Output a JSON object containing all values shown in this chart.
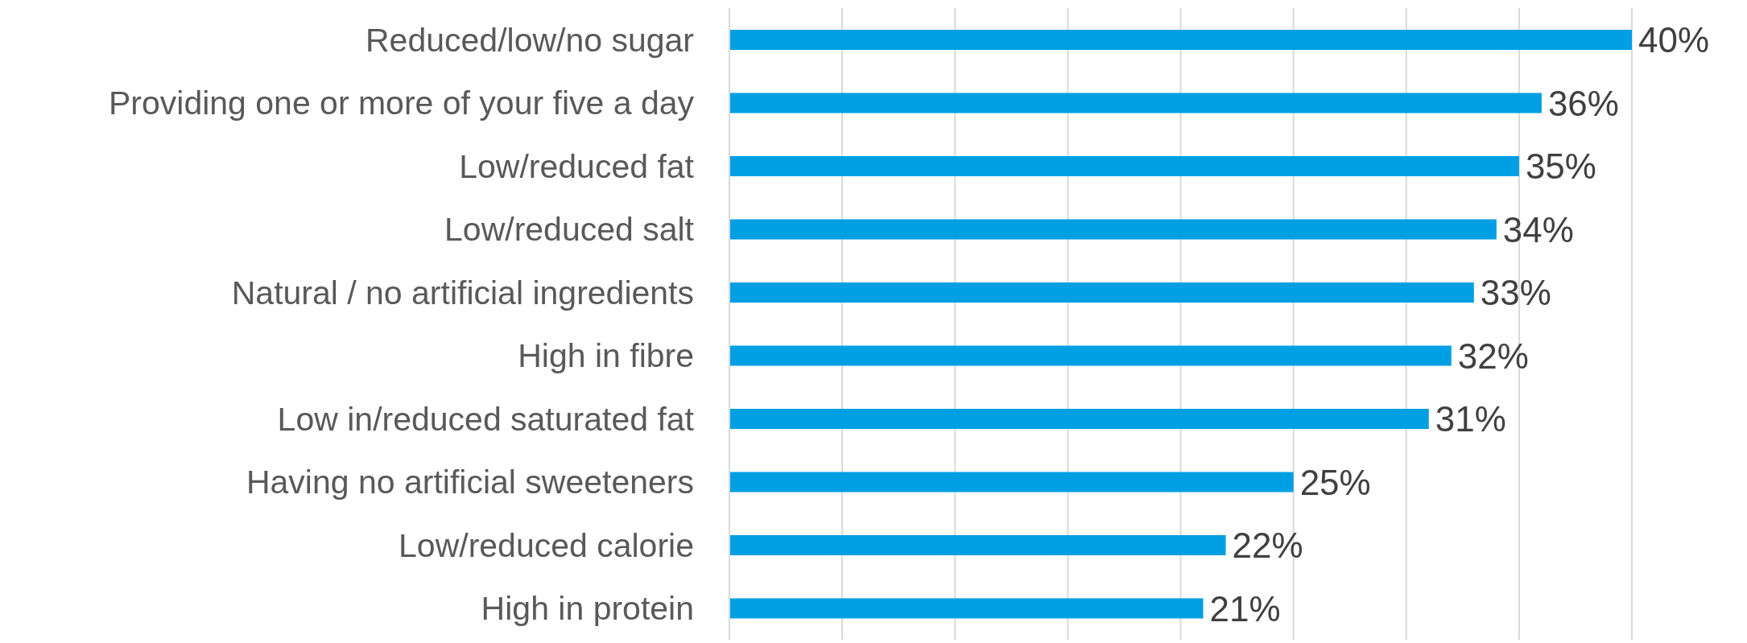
{
  "chart_data": {
    "type": "bar",
    "orientation": "horizontal",
    "categories": [
      "Reduced/low/no sugar",
      "Providing one or more of your five a day",
      "Low/reduced fat",
      "Low/reduced salt",
      "Natural / no artificial ingredients",
      "High in fibre",
      "Low in/reduced saturated fat",
      "Having no artificial sweeteners",
      "Low/reduced calorie",
      "High in protein"
    ],
    "values": [
      40,
      36,
      35,
      34,
      33,
      32,
      31,
      25,
      22,
      21
    ],
    "value_labels": [
      "40%",
      "36%",
      "35%",
      "34%",
      "33%",
      "32%",
      "31%",
      "25%",
      "22%",
      "21%"
    ],
    "color": "#009fe3",
    "xlim": [
      0,
      40
    ],
    "xticks": [
      {
        "value": 0,
        "label": null
      },
      {
        "value": 5,
        "label": null
      },
      {
        "value": 10,
        "label": null
      },
      {
        "value": 15,
        "label": null
      },
      {
        "value": 20,
        "label": null
      },
      {
        "value": 25,
        "label": null
      },
      {
        "value": 30,
        "label": null
      },
      {
        "value": 35,
        "label": null
      },
      {
        "value": 40,
        "label": null
      }
    ],
    "tick_labels": "y",
    "grid": "x"
  }
}
